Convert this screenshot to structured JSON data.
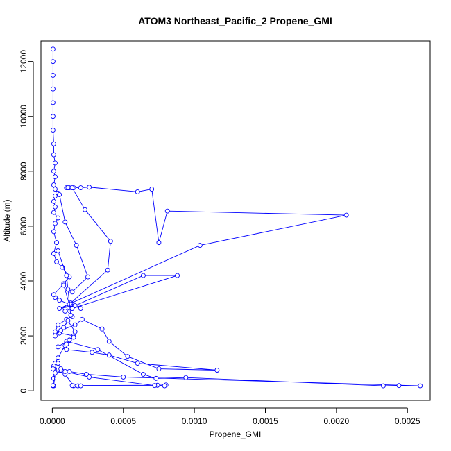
{
  "chart_data": {
    "type": "line",
    "title": "ATOM3 Northeast_Pacific_2 Propene_GMI",
    "xlabel": "Propene_GMI",
    "ylabel": "Altitude (m)",
    "xlim": [
      -8e-05,
      0.00266
    ],
    "ylim": [
      -350,
      12750
    ],
    "x_ticks": [
      0,
      0.0005,
      0.001,
      0.0015,
      0.002,
      0.0025
    ],
    "x_tick_labels": [
      "0.0000",
      "0.0005",
      "0.0010",
      "0.0015",
      "0.0020",
      "0.0025"
    ],
    "y_ticks": [
      0,
      2000,
      4000,
      6000,
      8000,
      10000,
      12000
    ],
    "y_tick_labels": [
      "0",
      "2000",
      "4000",
      "6000",
      "8000",
      "10000",
      "12000"
    ],
    "grid": false,
    "marker": "open-circle",
    "color": "#0000ff",
    "series": [
      {
        "points": [
          [
            5e-06,
            180
          ],
          [
            1e-05,
            450
          ],
          [
            1.5e-05,
            800
          ],
          [
            2e-05,
            1000
          ],
          [
            4e-05,
            1200
          ],
          [
            9e-05,
            1650
          ],
          [
            0.00011,
            1800
          ],
          [
            0.00012,
            1850
          ],
          [
            0.00015,
            2000
          ],
          [
            5e-05,
            2100
          ],
          [
            2e-05,
            2150
          ],
          [
            4e-05,
            2400
          ],
          [
            0.0001,
            2600
          ],
          [
            0.00014,
            2700
          ],
          [
            9e-05,
            3000
          ],
          [
            0.00013,
            3200
          ],
          [
            0.0002,
            3000
          ],
          [
            0.00012,
            3150
          ],
          [
            5e-05,
            3300
          ],
          [
            2e-05,
            3400
          ],
          [
            1e-05,
            3500
          ],
          [
            8e-05,
            3900
          ],
          [
            0.00012,
            4150
          ],
          [
            7e-05,
            4500
          ],
          [
            3e-05,
            4700
          ],
          [
            1e-05,
            5000
          ],
          [
            3e-05,
            5400
          ],
          [
            1e-05,
            5800
          ],
          [
            2e-05,
            6100
          ],
          [
            4e-05,
            6300
          ],
          [
            1e-05,
            6500
          ],
          [
            2e-05,
            6700
          ],
          [
            1e-05,
            6900
          ],
          [
            2e-05,
            7100
          ],
          [
            4e-05,
            7200
          ],
          [
            2e-05,
            7350
          ],
          [
            1e-05,
            7500
          ],
          [
            2e-05,
            7800
          ],
          [
            1e-05,
            8000
          ],
          [
            2e-05,
            8300
          ],
          [
            1e-05,
            8600
          ],
          [
            1e-05,
            9000
          ],
          [
            5e-06,
            9500
          ],
          [
            5e-06,
            10000
          ],
          [
            5e-06,
            10500
          ],
          [
            5e-06,
            11000
          ],
          [
            5e-06,
            11500
          ],
          [
            5e-06,
            12000
          ],
          [
            5e-06,
            12450
          ]
        ]
      },
      {
        "points": [
          [
            2e-05,
            2000
          ],
          [
            6e-05,
            2200
          ],
          [
            0.00016,
            2400
          ],
          [
            0.00021,
            2600
          ],
          [
            0.00035,
            2250
          ],
          [
            0.0004,
            1800
          ],
          [
            0.00053,
            1250
          ],
          [
            0.00075,
            800
          ],
          [
            0.00116,
            750
          ],
          [
            0.0006,
            1000
          ],
          [
            0.0004,
            1300
          ],
          [
            0.00028,
            1400
          ],
          [
            0.0001,
            1500
          ],
          [
            4e-05,
            1600
          ],
          [
            0.0001,
            1800
          ],
          [
            0.00032,
            1500
          ],
          [
            0.00064,
            600
          ],
          [
            0.00073,
            450
          ],
          [
            0.00094,
            480
          ],
          [
            0.00233,
            180
          ],
          [
            0.00244,
            190
          ],
          [
            0.00259,
            180
          ],
          [
            0.0005,
            500
          ],
          [
            0.00024,
            600
          ],
          [
            0.00012,
            700
          ],
          [
            6e-05,
            800
          ],
          [
            4e-05,
            1000
          ],
          [
            1e-05,
            900
          ],
          [
            5e-06,
            800
          ],
          [
            9e-05,
            600
          ],
          [
            0.00015,
            180
          ],
          [
            0.00018,
            180
          ],
          [
            0.0002,
            180
          ],
          [
            0.00014,
            190
          ],
          [
            0.00074,
            200
          ],
          [
            0.0008,
            210
          ],
          [
            0.00079,
            180
          ],
          [
            0.00072,
            190
          ],
          [
            0.00026,
            500
          ],
          [
            9e-05,
            700
          ],
          [
            2e-05,
            650
          ],
          [
            1e-05,
            180
          ],
          [
            5e-06,
            190
          ]
        ]
      },
      {
        "points": [
          [
            9e-05,
            2900
          ],
          [
            0.00014,
            3000
          ],
          [
            0.00088,
            4200
          ],
          [
            0.00064,
            4200
          ],
          [
            0.00016,
            3100
          ],
          [
            5e-05,
            3000
          ],
          [
            0.00104,
            5300
          ],
          [
            0.00207,
            6400
          ],
          [
            0.00081,
            6550
          ],
          [
            0.00075,
            5400
          ],
          [
            0.0007,
            7350
          ],
          [
            0.0006,
            7250
          ],
          [
            0.00026,
            7420
          ],
          [
            0.0002,
            7400
          ],
          [
            0.00015,
            7400
          ],
          [
            0.00012,
            7400
          ],
          [
            0.0001,
            7400
          ],
          [
            0.00011,
            7400
          ]
        ]
      },
      {
        "points": [
          [
            5e-05,
            7150
          ],
          [
            9e-05,
            6150
          ],
          [
            0.00017,
            5300
          ],
          [
            0.00025,
            4150
          ],
          [
            0.00014,
            3600
          ],
          [
            8e-05,
            3850
          ],
          [
            0.00012,
            3150
          ],
          [
            0.00039,
            4400
          ],
          [
            0.00041,
            5450
          ],
          [
            0.00023,
            6600
          ],
          [
            0.00014,
            7400
          ]
        ]
      },
      {
        "points": [
          [
            4e-05,
            5100
          ],
          [
            0.0001,
            4200
          ],
          [
            0.00011,
            3700
          ],
          [
            0.00013,
            2750
          ],
          [
            8e-05,
            2300
          ],
          [
            0.00011,
            2550
          ],
          [
            0.00016,
            2150
          ],
          [
            0.00015,
            1950
          ],
          [
            0.00012,
            1850
          ],
          [
            0.0001,
            1700
          ]
        ]
      }
    ]
  }
}
